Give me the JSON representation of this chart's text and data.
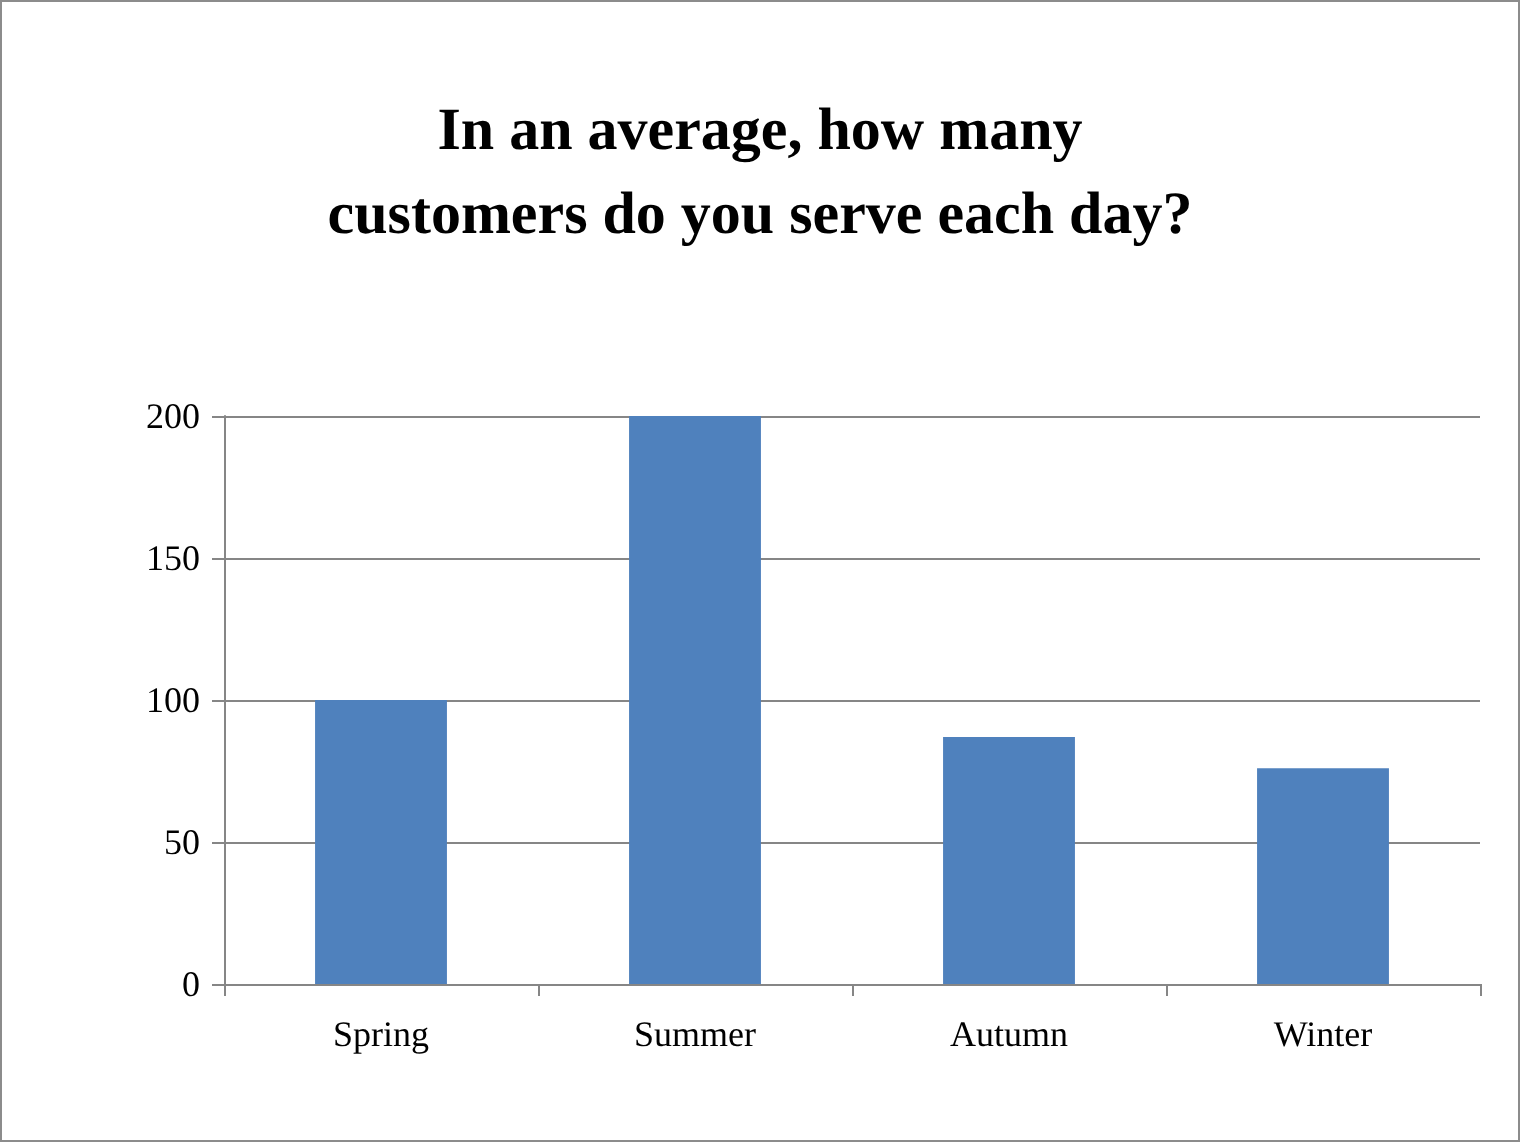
{
  "chart_data": {
    "type": "bar",
    "title": "In an average, how many\ncustomers do you serve each day?",
    "categories": [
      "Spring",
      "Summer",
      "Autumn",
      "Winter"
    ],
    "values": [
      100,
      200,
      87,
      76
    ],
    "color": "#4f81bd",
    "ylim": [
      0,
      200
    ],
    "yticks": [
      0,
      50,
      100,
      150,
      200
    ],
    "grid": "y"
  }
}
